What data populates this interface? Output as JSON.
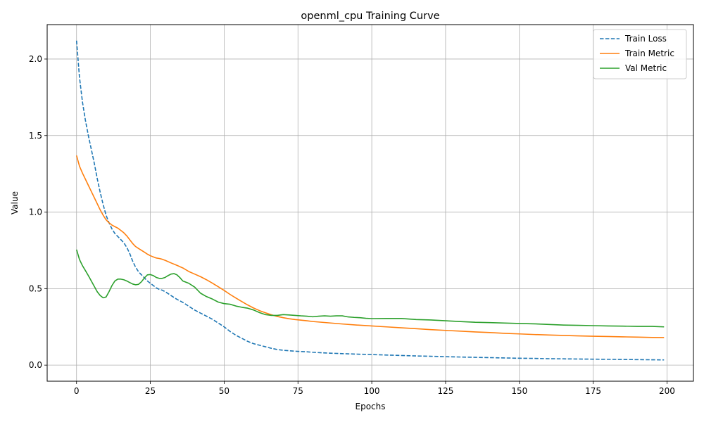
{
  "chart_data": {
    "type": "line",
    "title": "openml_cpu Training Curve",
    "xlabel": "Epochs",
    "ylabel": "Value",
    "xlim": [
      -9.95,
      208.95
    ],
    "ylim": [
      -0.105,
      2.225
    ],
    "xticks": [
      0,
      25,
      50,
      75,
      100,
      125,
      150,
      175,
      200
    ],
    "yticks": [
      0.0,
      0.5,
      1.0,
      1.5,
      2.0
    ],
    "xtick_labels": [
      "0",
      "25",
      "50",
      "75",
      "100",
      "125",
      "150",
      "175",
      "200"
    ],
    "ytick_labels": [
      "0.0",
      "0.5",
      "1.0",
      "1.5",
      "2.0"
    ],
    "grid": true,
    "legend_position": "top-right",
    "series": [
      {
        "name": "Train Loss",
        "color": "#1f77b4",
        "dash": "dashed",
        "x": [
          0,
          1,
          2,
          3,
          4,
          5,
          6,
          7,
          8,
          9,
          10,
          11,
          12,
          13,
          14,
          15,
          16,
          17,
          18,
          19,
          20,
          21,
          22,
          23,
          24,
          25,
          26,
          27,
          28,
          29,
          30,
          32,
          34,
          36,
          38,
          40,
          42,
          44,
          46,
          48,
          50,
          52,
          54,
          56,
          58,
          60,
          62,
          64,
          66,
          68,
          70,
          72,
          74,
          76,
          78,
          80,
          85,
          90,
          95,
          100,
          105,
          110,
          115,
          120,
          125,
          130,
          135,
          140,
          145,
          150,
          155,
          160,
          165,
          170,
          175,
          180,
          185,
          190,
          195,
          199
        ],
        "y": [
          2.12,
          1.88,
          1.72,
          1.6,
          1.5,
          1.41,
          1.32,
          1.22,
          1.13,
          1.05,
          0.98,
          0.93,
          0.89,
          0.86,
          0.84,
          0.82,
          0.8,
          0.77,
          0.73,
          0.68,
          0.64,
          0.61,
          0.59,
          0.57,
          0.55,
          0.535,
          0.52,
          0.505,
          0.495,
          0.49,
          0.48,
          0.455,
          0.43,
          0.41,
          0.385,
          0.36,
          0.34,
          0.32,
          0.3,
          0.275,
          0.25,
          0.22,
          0.195,
          0.175,
          0.155,
          0.14,
          0.13,
          0.12,
          0.11,
          0.102,
          0.097,
          0.094,
          0.091,
          0.089,
          0.087,
          0.084,
          0.079,
          0.075,
          0.072,
          0.069,
          0.066,
          0.063,
          0.06,
          0.058,
          0.055,
          0.053,
          0.051,
          0.049,
          0.047,
          0.045,
          0.044,
          0.042,
          0.041,
          0.04,
          0.039,
          0.038,
          0.037,
          0.036,
          0.035,
          0.034
        ]
      },
      {
        "name": "Train Metric",
        "color": "#ff7f0e",
        "dash": "solid",
        "x": [
          0,
          1,
          2,
          3,
          4,
          5,
          6,
          7,
          8,
          9,
          10,
          11,
          12,
          13,
          14,
          15,
          16,
          17,
          18,
          19,
          20,
          21,
          22,
          23,
          24,
          25,
          26,
          27,
          28,
          29,
          30,
          32,
          34,
          36,
          38,
          40,
          42,
          44,
          46,
          48,
          50,
          52,
          54,
          56,
          58,
          60,
          62,
          64,
          66,
          68,
          70,
          72,
          74,
          76,
          78,
          80,
          85,
          90,
          95,
          100,
          105,
          110,
          115,
          120,
          125,
          130,
          135,
          140,
          145,
          150,
          155,
          160,
          165,
          170,
          175,
          180,
          185,
          190,
          195,
          199
        ],
        "y": [
          1.37,
          1.3,
          1.255,
          1.215,
          1.175,
          1.135,
          1.095,
          1.055,
          1.015,
          0.98,
          0.95,
          0.93,
          0.915,
          0.905,
          0.895,
          0.88,
          0.865,
          0.845,
          0.82,
          0.795,
          0.775,
          0.762,
          0.75,
          0.738,
          0.725,
          0.715,
          0.707,
          0.7,
          0.697,
          0.692,
          0.685,
          0.668,
          0.652,
          0.635,
          0.612,
          0.595,
          0.578,
          0.558,
          0.536,
          0.512,
          0.488,
          0.462,
          0.438,
          0.415,
          0.393,
          0.373,
          0.356,
          0.342,
          0.329,
          0.318,
          0.31,
          0.303,
          0.298,
          0.294,
          0.29,
          0.285,
          0.277,
          0.269,
          0.262,
          0.256,
          0.25,
          0.244,
          0.238,
          0.232,
          0.227,
          0.222,
          0.217,
          0.213,
          0.208,
          0.204,
          0.2,
          0.197,
          0.194,
          0.191,
          0.189,
          0.187,
          0.185,
          0.183,
          0.181,
          0.18
        ]
      },
      {
        "name": "Val Metric",
        "color": "#2ca02c",
        "dash": "solid",
        "x": [
          0,
          1,
          2,
          3,
          4,
          5,
          6,
          7,
          8,
          9,
          10,
          11,
          12,
          13,
          14,
          15,
          16,
          17,
          18,
          19,
          20,
          21,
          22,
          23,
          24,
          25,
          26,
          27,
          28,
          29,
          30,
          31,
          32,
          33,
          34,
          35,
          36,
          38,
          40,
          42,
          44,
          46,
          48,
          50,
          52,
          54,
          56,
          58,
          60,
          62,
          64,
          66,
          68,
          70,
          72,
          74,
          76,
          78,
          80,
          82,
          84,
          86,
          88,
          90,
          92,
          94,
          96,
          98,
          100,
          105,
          110,
          115,
          120,
          125,
          130,
          135,
          140,
          145,
          150,
          155,
          160,
          165,
          170,
          175,
          180,
          185,
          190,
          195,
          199
        ],
        "y": [
          0.755,
          0.69,
          0.65,
          0.618,
          0.585,
          0.55,
          0.515,
          0.48,
          0.455,
          0.44,
          0.445,
          0.48,
          0.52,
          0.55,
          0.562,
          0.562,
          0.558,
          0.55,
          0.54,
          0.53,
          0.525,
          0.528,
          0.545,
          0.57,
          0.59,
          0.592,
          0.585,
          0.573,
          0.567,
          0.567,
          0.573,
          0.585,
          0.595,
          0.598,
          0.59,
          0.572,
          0.55,
          0.535,
          0.51,
          0.47,
          0.448,
          0.432,
          0.412,
          0.402,
          0.398,
          0.386,
          0.378,
          0.372,
          0.36,
          0.343,
          0.33,
          0.325,
          0.325,
          0.33,
          0.328,
          0.325,
          0.322,
          0.32,
          0.316,
          0.32,
          0.322,
          0.32,
          0.322,
          0.322,
          0.315,
          0.312,
          0.31,
          0.306,
          0.304,
          0.305,
          0.305,
          0.298,
          0.295,
          0.29,
          0.285,
          0.28,
          0.278,
          0.275,
          0.272,
          0.27,
          0.266,
          0.262,
          0.26,
          0.258,
          0.256,
          0.255,
          0.253,
          0.253,
          0.25
        ]
      }
    ]
  }
}
